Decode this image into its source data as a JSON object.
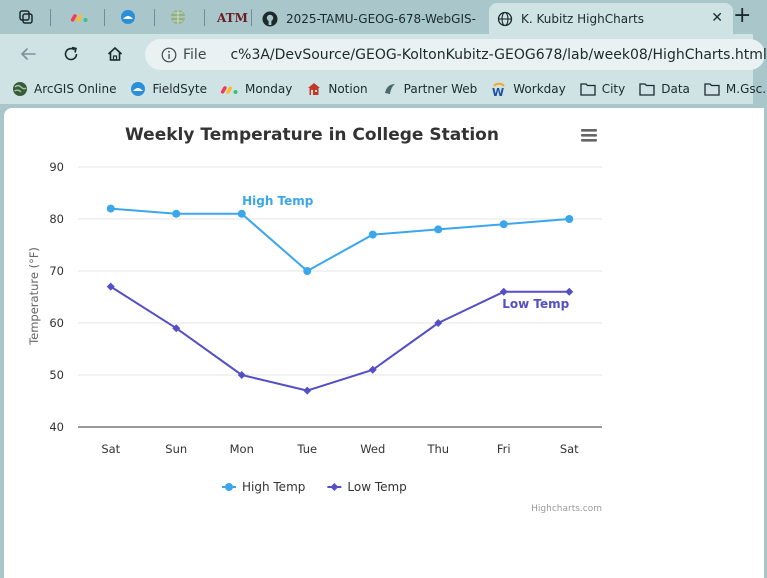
{
  "browser": {
    "tabs": [
      {
        "label": "",
        "icon": "workspaces-icon"
      },
      {
        "label": "",
        "icon": "monday-icon"
      },
      {
        "label": "",
        "icon": "fieldsyte-icon"
      },
      {
        "label": "",
        "icon": "globe-grid-icon"
      },
      {
        "label": "",
        "icon": "tamu-icon"
      },
      {
        "label": "2025-TAMU-GEOG-678-WebGIS-",
        "icon": "github-icon"
      },
      {
        "label": "K. Kubitz HighCharts",
        "icon": "globe-icon",
        "active": true
      }
    ],
    "close_glyph": "✕",
    "newtab_glyph": "+",
    "address": {
      "scheme": "File",
      "url": "c%3A/DevSource/GEOG-KoltonKubitz-GEOG678/lab/week08/HighCharts.html"
    },
    "bookmarks": [
      {
        "label": "ArcGIS Online",
        "icon": "arcgis-icon"
      },
      {
        "label": "FieldSyte",
        "icon": "fieldsyte-icon"
      },
      {
        "label": "Monday",
        "icon": "monday-icon"
      },
      {
        "label": "Notion",
        "icon": "notion-icon"
      },
      {
        "label": "Partner Web",
        "icon": "partner-icon"
      },
      {
        "label": "Workday",
        "icon": "workday-icon"
      },
      {
        "label": "City",
        "icon": "folder-icon"
      },
      {
        "label": "Data",
        "icon": "folder-icon"
      },
      {
        "label": "M.Gsc.",
        "icon": "folder-icon"
      }
    ]
  },
  "chart_data": {
    "type": "line",
    "title": "Weekly Temperature in College Station",
    "xlabel": "",
    "ylabel": "Temperature (°F)",
    "categories": [
      "Sat",
      "Sun",
      "Mon",
      "Tue",
      "Wed",
      "Thu",
      "Fri",
      "Sat"
    ],
    "ylim": [
      40,
      90
    ],
    "yticks": [
      40,
      50,
      60,
      70,
      80,
      90
    ],
    "grid": true,
    "legend": "bottom-center",
    "series": [
      {
        "name": "High Temp",
        "values": [
          82,
          81,
          81,
          70,
          77,
          78,
          79,
          80
        ],
        "color": "#3ba6eb",
        "marker": "circle"
      },
      {
        "name": "Low Temp",
        "values": [
          67,
          59,
          50,
          47,
          51,
          60,
          66,
          66
        ],
        "color": "#544fc5",
        "marker": "diamond"
      }
    ],
    "annotations": [
      {
        "text": "High Temp",
        "series": 0,
        "index": 2
      },
      {
        "text": "Low Temp",
        "series": 1,
        "index": 6
      }
    ],
    "credits": "Highcharts.com",
    "menu_icon": "hamburger-icon"
  }
}
